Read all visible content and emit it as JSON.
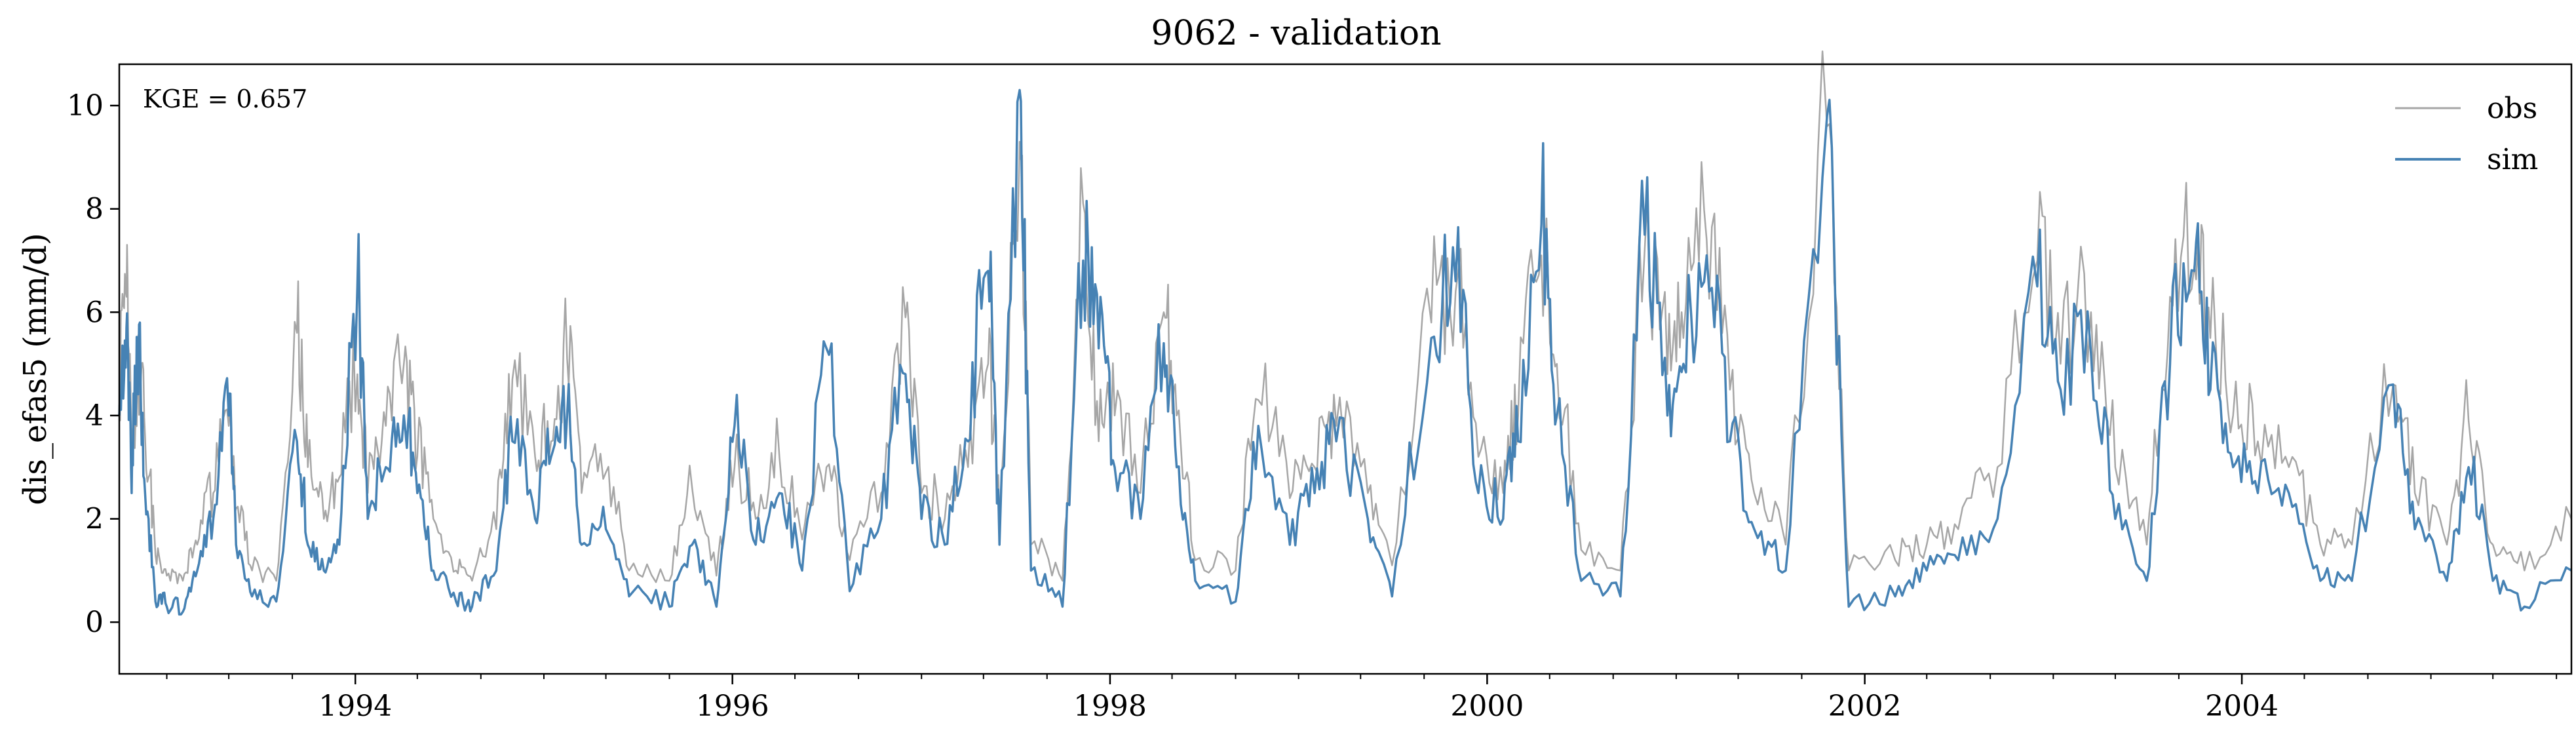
{
  "chart_data": {
    "type": "line",
    "title": "9062 - validation",
    "xlabel": "",
    "ylabel": "dis_efas5 (mm/d)",
    "annotation": "KGE = 0.657",
    "xlim": [
      "1992-10-01",
      "2005-09-30"
    ],
    "ylim": [
      -1,
      10.8
    ],
    "yticks": [
      0,
      2,
      4,
      6,
      8,
      10
    ],
    "xticks": [
      {
        "label": "1994",
        "date": "1994-01-01"
      },
      {
        "label": "1996",
        "date": "1996-01-01"
      },
      {
        "label": "1998",
        "date": "1998-01-01"
      },
      {
        "label": "2000",
        "date": "2000-01-01"
      },
      {
        "label": "2002",
        "date": "2002-01-01"
      },
      {
        "label": "2004",
        "date": "2004-01-01"
      }
    ],
    "legend_position": "top-right",
    "grid": false,
    "series": [
      {
        "name": "obs",
        "color": "#a6a6a6",
        "points": [
          [
            "1992-10-01",
            4.2
          ],
          [
            "1992-10-15",
            6.3
          ],
          [
            "1992-10-25",
            3.0
          ],
          [
            "1992-11-05",
            4.5
          ],
          [
            "1992-11-20",
            3.6
          ],
          [
            "1992-12-10",
            1.3
          ],
          [
            "1993-01-01",
            0.9
          ],
          [
            "1993-02-01",
            0.8
          ],
          [
            "1993-03-01",
            1.5
          ],
          [
            "1993-04-01",
            2.5
          ],
          [
            "1993-05-01",
            3.8
          ],
          [
            "1993-05-15",
            2.2
          ],
          [
            "1993-06-15",
            1.0
          ],
          [
            "1993-08-01",
            0.8
          ],
          [
            "1993-09-10",
            5.6
          ],
          [
            "1993-10-01",
            3.0
          ],
          [
            "1993-11-01",
            2.0
          ],
          [
            "1993-12-01",
            2.8
          ],
          [
            "1994-01-05",
            4.8
          ],
          [
            "1994-01-25",
            2.5
          ],
          [
            "1994-03-01",
            3.8
          ],
          [
            "1994-04-05",
            5.0
          ],
          [
            "1994-05-01",
            3.2
          ],
          [
            "1994-06-01",
            2.0
          ],
          [
            "1994-07-15",
            1.0
          ],
          [
            "1994-08-15",
            0.8
          ],
          [
            "1994-10-01",
            1.8
          ],
          [
            "1994-11-01",
            4.7
          ],
          [
            "1994-12-15",
            3.2
          ],
          [
            "1995-01-15",
            3.5
          ],
          [
            "1995-02-15",
            5.1
          ],
          [
            "1995-03-15",
            2.5
          ],
          [
            "1995-05-01",
            2.9
          ],
          [
            "1995-06-15",
            1.0
          ],
          [
            "1995-09-01",
            0.8
          ],
          [
            "1995-10-15",
            2.6
          ],
          [
            "1995-12-01",
            0.9
          ],
          [
            "1996-01-05",
            3.0
          ],
          [
            "1996-02-15",
            2.0
          ],
          [
            "1996-04-01",
            3.2
          ],
          [
            "1996-05-15",
            1.6
          ],
          [
            "1996-07-01",
            3.0
          ],
          [
            "1996-08-15",
            1.2
          ],
          [
            "1996-10-15",
            2.5
          ],
          [
            "1996-12-01",
            5.9
          ],
          [
            "1997-01-01",
            2.5
          ],
          [
            "1997-02-15",
            2.0
          ],
          [
            "1997-04-01",
            3.0
          ],
          [
            "1997-05-10",
            5.0
          ],
          [
            "1997-06-01",
            2.0
          ],
          [
            "1997-07-10",
            9.3
          ],
          [
            "1997-08-01",
            1.5
          ],
          [
            "1997-10-01",
            0.8
          ],
          [
            "1997-11-10",
            8.1
          ],
          [
            "1997-12-10",
            3.5
          ],
          [
            "1998-01-10",
            4.0
          ],
          [
            "1998-03-01",
            2.5
          ],
          [
            "1998-04-15",
            6.0
          ],
          [
            "1998-05-10",
            4.0
          ],
          [
            "1998-06-15",
            1.2
          ],
          [
            "1998-09-01",
            1.0
          ],
          [
            "1998-10-15",
            4.3
          ],
          [
            "1998-12-15",
            2.4
          ],
          [
            "1999-02-01",
            3.0
          ],
          [
            "1999-03-15",
            3.8
          ],
          [
            "1999-05-15",
            2.5
          ],
          [
            "1999-07-01",
            1.1
          ],
          [
            "1999-09-15",
            5.8
          ],
          [
            "1999-11-01",
            6.4
          ],
          [
            "1999-12-15",
            3.2
          ],
          [
            "2000-02-01",
            2.5
          ],
          [
            "2000-03-01",
            4.0
          ],
          [
            "2000-04-15",
            7.1
          ],
          [
            "2000-05-15",
            5.0
          ],
          [
            "2000-07-01",
            1.4
          ],
          [
            "2000-09-15",
            1.0
          ],
          [
            "2000-11-01",
            7.2
          ],
          [
            "2000-12-15",
            4.8
          ],
          [
            "2001-01-15",
            5.5
          ],
          [
            "2001-03-01",
            7.4
          ],
          [
            "2001-04-15",
            4.5
          ],
          [
            "2001-06-01",
            2.5
          ],
          [
            "2001-08-01",
            1.5
          ],
          [
            "2001-10-20",
            9.6
          ],
          [
            "2001-12-01",
            1.0
          ],
          [
            "2002-03-01",
            1.2
          ],
          [
            "2002-05-01",
            1.5
          ],
          [
            "2002-07-01",
            1.8
          ],
          [
            "2002-09-15",
            3.0
          ],
          [
            "2002-12-01",
            7.0
          ],
          [
            "2003-01-15",
            5.0
          ],
          [
            "2003-03-15",
            6.0
          ],
          [
            "2003-05-01",
            3.0
          ],
          [
            "2003-07-01",
            1.5
          ],
          [
            "2003-08-15",
            6.3
          ],
          [
            "2003-10-01",
            6.9
          ],
          [
            "2003-11-01",
            5.5
          ],
          [
            "2003-12-15",
            4.0
          ],
          [
            "2004-02-01",
            3.5
          ],
          [
            "2004-04-01",
            3.0
          ],
          [
            "2004-06-01",
            1.5
          ],
          [
            "2004-08-01",
            1.5
          ],
          [
            "2004-10-20",
            4.6
          ],
          [
            "2004-12-01",
            2.5
          ],
          [
            "2005-02-01",
            1.5
          ],
          [
            "2005-03-15",
            3.9
          ],
          [
            "2005-05-01",
            1.5
          ],
          [
            "2005-07-01",
            1.0
          ],
          [
            "2005-09-30",
            2.0
          ]
        ]
      },
      {
        "name": "sim",
        "color": "#4682b4",
        "points": [
          [
            "1992-10-01",
            4.0
          ],
          [
            "1992-10-15",
            5.7
          ],
          [
            "1992-10-25",
            2.5
          ],
          [
            "1992-11-05",
            5.5
          ],
          [
            "1992-11-20",
            2.5
          ],
          [
            "1992-12-10",
            0.4
          ],
          [
            "1993-01-01",
            0.3
          ],
          [
            "1993-02-01",
            0.2
          ],
          [
            "1993-03-01",
            1.0
          ],
          [
            "1993-04-01",
            2.0
          ],
          [
            "1993-05-01",
            4.0
          ],
          [
            "1993-05-15",
            1.5
          ],
          [
            "1993-06-15",
            0.5
          ],
          [
            "1993-08-01",
            0.4
          ],
          [
            "1993-09-10",
            3.5
          ],
          [
            "1993-10-01",
            1.5
          ],
          [
            "1993-11-01",
            1.0
          ],
          [
            "1993-12-01",
            1.5
          ],
          [
            "1994-01-05",
            6.5
          ],
          [
            "1994-01-25",
            2.0
          ],
          [
            "1994-03-01",
            3.0
          ],
          [
            "1994-04-05",
            4.0
          ],
          [
            "1994-05-01",
            2.5
          ],
          [
            "1994-06-01",
            1.0
          ],
          [
            "1994-07-15",
            0.4
          ],
          [
            "1994-08-15",
            0.3
          ],
          [
            "1994-10-01",
            1.0
          ],
          [
            "1994-11-01",
            3.5
          ],
          [
            "1994-12-15",
            2.0
          ],
          [
            "1995-01-15",
            3.2
          ],
          [
            "1995-02-15",
            4.0
          ],
          [
            "1995-03-15",
            1.5
          ],
          [
            "1995-05-01",
            1.8
          ],
          [
            "1995-06-15",
            0.5
          ],
          [
            "1995-09-01",
            0.3
          ],
          [
            "1995-10-15",
            1.5
          ],
          [
            "1995-12-01",
            0.3
          ],
          [
            "1996-01-05",
            3.8
          ],
          [
            "1996-02-15",
            1.5
          ],
          [
            "1996-04-01",
            2.5
          ],
          [
            "1996-05-15",
            1.0
          ],
          [
            "1996-07-01",
            5.3
          ],
          [
            "1996-08-15",
            0.6
          ],
          [
            "1996-10-15",
            2.0
          ],
          [
            "1996-12-01",
            4.8
          ],
          [
            "1997-01-01",
            2.0
          ],
          [
            "1997-02-15",
            1.5
          ],
          [
            "1997-04-01",
            3.5
          ],
          [
            "1997-05-10",
            6.8
          ],
          [
            "1997-06-01",
            1.5
          ],
          [
            "1997-07-10",
            10.3
          ],
          [
            "1997-08-01",
            1.0
          ],
          [
            "1997-10-01",
            0.3
          ],
          [
            "1997-11-10",
            7.0
          ],
          [
            "1997-12-10",
            5.3
          ],
          [
            "1998-01-10",
            3.0
          ],
          [
            "1998-03-01",
            2.0
          ],
          [
            "1998-04-15",
            5.4
          ],
          [
            "1998-05-10",
            3.0
          ],
          [
            "1998-06-15",
            0.8
          ],
          [
            "1998-09-01",
            0.4
          ],
          [
            "1998-10-15",
            3.8
          ],
          [
            "1998-12-15",
            1.5
          ],
          [
            "1999-02-01",
            2.5
          ],
          [
            "1999-03-15",
            3.5
          ],
          [
            "1999-05-15",
            2.0
          ],
          [
            "1999-07-01",
            0.5
          ],
          [
            "1999-09-15",
            5.5
          ],
          [
            "1999-11-01",
            6.6
          ],
          [
            "1999-12-15",
            2.5
          ],
          [
            "2000-02-01",
            2.0
          ],
          [
            "2000-03-01",
            3.5
          ],
          [
            "2000-04-15",
            7.7
          ],
          [
            "2000-05-15",
            4.0
          ],
          [
            "2000-07-01",
            0.8
          ],
          [
            "2000-09-15",
            0.5
          ],
          [
            "2000-11-01",
            7.5
          ],
          [
            "2000-12-15",
            4.0
          ],
          [
            "2001-01-15",
            5.0
          ],
          [
            "2001-03-01",
            7.1
          ],
          [
            "2001-04-15",
            3.5
          ],
          [
            "2001-06-01",
            1.8
          ],
          [
            "2001-08-01",
            1.0
          ],
          [
            "2001-10-20",
            9.8
          ],
          [
            "2001-12-01",
            0.3
          ],
          [
            "2002-03-01",
            0.5
          ],
          [
            "2002-05-01",
            1.0
          ],
          [
            "2002-07-01",
            1.2
          ],
          [
            "2002-09-15",
            2.0
          ],
          [
            "2002-12-01",
            6.5
          ],
          [
            "2003-01-15",
            4.5
          ],
          [
            "2003-03-15",
            5.2
          ],
          [
            "2003-05-01",
            2.0
          ],
          [
            "2003-07-01",
            0.8
          ],
          [
            "2003-08-15",
            5.0
          ],
          [
            "2003-10-01",
            6.8
          ],
          [
            "2003-11-01",
            4.5
          ],
          [
            "2003-12-15",
            3.0
          ],
          [
            "2004-02-01",
            2.5
          ],
          [
            "2004-04-01",
            2.5
          ],
          [
            "2004-06-01",
            0.8
          ],
          [
            "2004-08-01",
            0.8
          ],
          [
            "2004-10-20",
            4.6
          ],
          [
            "2004-12-01",
            1.8
          ],
          [
            "2005-02-01",
            0.8
          ],
          [
            "2005-03-15",
            3.0
          ],
          [
            "2005-05-01",
            0.8
          ],
          [
            "2005-07-01",
            0.3
          ],
          [
            "2005-09-30",
            1.0
          ]
        ]
      }
    ]
  }
}
